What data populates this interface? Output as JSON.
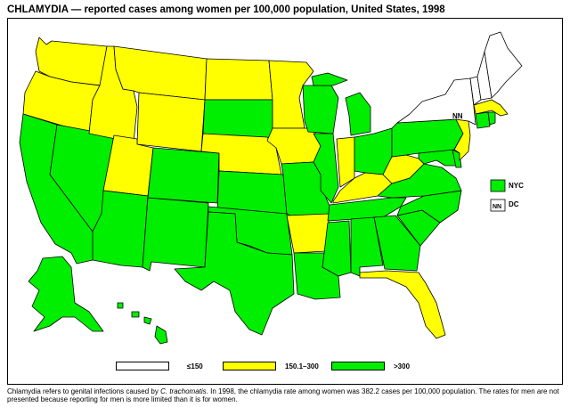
{
  "title": "CHLAMYDIA — reported cases among women per 100,000 population, United States, 1998",
  "colors": {
    "low": "#ffffff",
    "mid": "#ffff00",
    "high": "#00ee00",
    "border": "#000000"
  },
  "legend": [
    {
      "label": "≤150",
      "class": "low"
    },
    {
      "label": "150.1–300",
      "class": "mid"
    },
    {
      "label": ">300",
      "class": "high"
    }
  ],
  "insets": {
    "nyc_label": "NYC",
    "dc_label": "DC",
    "dc_box_text": "NN",
    "nn_label": "NN"
  },
  "states": {
    "WA": "mid",
    "OR": "mid",
    "CA": "high",
    "NV": "high",
    "ID": "mid",
    "MT": "mid",
    "WY": "mid",
    "UT": "mid",
    "AZ": "high",
    "CO": "high",
    "NM": "high",
    "ND": "mid",
    "SD": "high",
    "NE": "mid",
    "KS": "high",
    "OK": "high",
    "TX": "high",
    "MN": "mid",
    "IA": "mid",
    "MO": "high",
    "AR": "mid",
    "LA": "high",
    "WI": "high",
    "IL": "high",
    "MI": "high",
    "IN": "mid",
    "OH": "high",
    "KY": "mid",
    "TN": "high",
    "MS": "high",
    "AL": "high",
    "GA": "high",
    "FL": "mid",
    "SC": "high",
    "NC": "high",
    "VA": "high",
    "WV": "mid",
    "MD": "high",
    "DE": "high",
    "PA": "high",
    "NJ": "mid",
    "NY": "low",
    "CT": "high",
    "RI": "high",
    "MA": "mid",
    "VT": "low",
    "NH": "low",
    "ME": "low",
    "AK": "high",
    "HI": "high",
    "NYC": "high",
    "DC": "low"
  },
  "footnote": {
    "part1": "Chlamydia refers to genital infections caused by ",
    "organism": "C. trachomatis",
    "part2": ". In 1998, the chlamydia rate among women was 382.2 cases per 100,000 population. The rates for men are not presented because reporting for men is more limited than it is for women."
  }
}
